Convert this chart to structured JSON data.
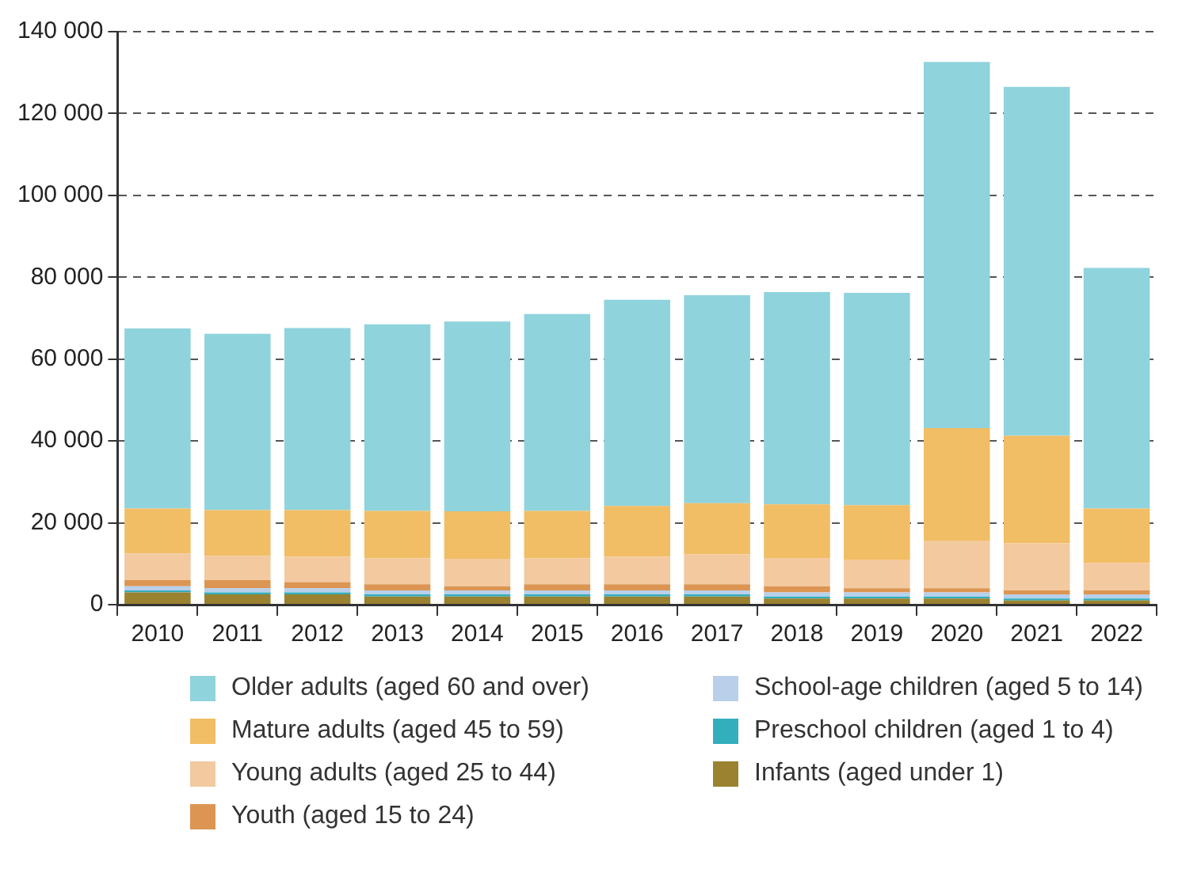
{
  "chart_data": {
    "type": "bar",
    "stacked": true,
    "categories": [
      "2010",
      "2011",
      "2012",
      "2013",
      "2014",
      "2015",
      "2016",
      "2017",
      "2018",
      "2019",
      "2020",
      "2021",
      "2022"
    ],
    "series": [
      {
        "name": "Infants (aged under 1)",
        "color": "#9a8230",
        "values": [
          3000,
          2500,
          2500,
          2000,
          2000,
          2000,
          2000,
          2000,
          1500,
          1500,
          1500,
          1000,
          1000
        ]
      },
      {
        "name": "Preschool children (aged 1 to 4)",
        "color": "#33aebd",
        "values": [
          500,
          500,
          500,
          500,
          500,
          500,
          500,
          500,
          500,
          500,
          500,
          500,
          500
        ]
      },
      {
        "name": "School-age children (aged 5 to 14)",
        "color": "#b9cfea",
        "values": [
          1000,
          1000,
          1000,
          1000,
          1000,
          1000,
          1000,
          1000,
          1000,
          1000,
          1000,
          1000,
          1000
        ]
      },
      {
        "name": "Youth (aged 15 to 24)",
        "color": "#dc9552",
        "values": [
          1500,
          2000,
          1500,
          1500,
          1000,
          1500,
          1500,
          1500,
          1500,
          1000,
          1000,
          1000,
          1000
        ]
      },
      {
        "name": "Young adults (aged 25 to 44)",
        "color": "#f3c9a0",
        "values": [
          6500,
          5900,
          6200,
          6300,
          6700,
          6300,
          6700,
          7300,
          6900,
          6900,
          11500,
          11500,
          6700
        ]
      },
      {
        "name": "Mature adults (aged 45 to 59)",
        "color": "#f1bd65",
        "values": [
          11000,
          11200,
          11400,
          11600,
          11600,
          11600,
          12400,
          12500,
          13100,
          13400,
          27600,
          26300,
          13300
        ]
      },
      {
        "name": "Older adults (aged 60 and over)",
        "color": "#8fd3dd",
        "values": [
          44000,
          43100,
          44500,
          45600,
          46400,
          48100,
          50400,
          50800,
          51900,
          51900,
          89500,
          85200,
          58800
        ]
      }
    ],
    "ylim": [
      0,
      140000
    ],
    "yticks": [
      {
        "value": 0,
        "label": "0"
      },
      {
        "value": 20000,
        "label": "20 000"
      },
      {
        "value": 40000,
        "label": "40 000"
      },
      {
        "value": 60000,
        "label": "60 000"
      },
      {
        "value": 80000,
        "label": "80 000"
      },
      {
        "value": 100000,
        "label": "100 000"
      },
      {
        "value": 120000,
        "label": "120 000"
      },
      {
        "value": 140000,
        "label": "140 000"
      }
    ],
    "grid": "y",
    "legend": "bottom"
  }
}
